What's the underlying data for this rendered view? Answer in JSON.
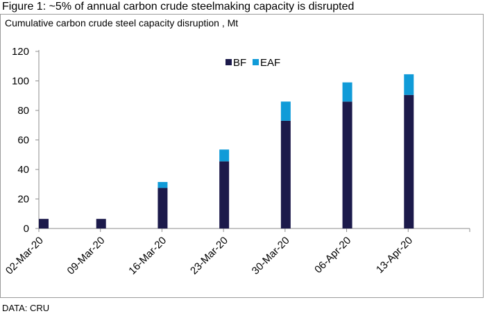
{
  "figure_title": "Figure 1: ~5% of annual carbon crude steelmaking capacity is disrupted",
  "source": "DATA: CRU",
  "colors": {
    "BF": "#1c1a4b",
    "EAF": "#109bd8"
  },
  "chart_data": {
    "type": "bar",
    "stacked": true,
    "title": "Cumulative carbon crude steel capacity disruption , Mt",
    "xlabel": "",
    "ylabel": "",
    "categories": [
      "02-Mar-20",
      "09-Mar-20",
      "16-Mar-20",
      "23-Mar-20",
      "30-Mar-20",
      "06-Apr-20",
      "13-Apr-20"
    ],
    "series": [
      {
        "name": "BF",
        "values": [
          6.5,
          6.5,
          27.5,
          45.5,
          73,
          86,
          90.5
        ]
      },
      {
        "name": "EAF",
        "values": [
          0,
          0,
          4,
          8,
          13,
          13,
          14
        ]
      }
    ],
    "ylim": [
      0,
      120
    ],
    "yticks": [
      0,
      20,
      40,
      60,
      80,
      100,
      120
    ],
    "grid": false,
    "legend": "top-center"
  }
}
